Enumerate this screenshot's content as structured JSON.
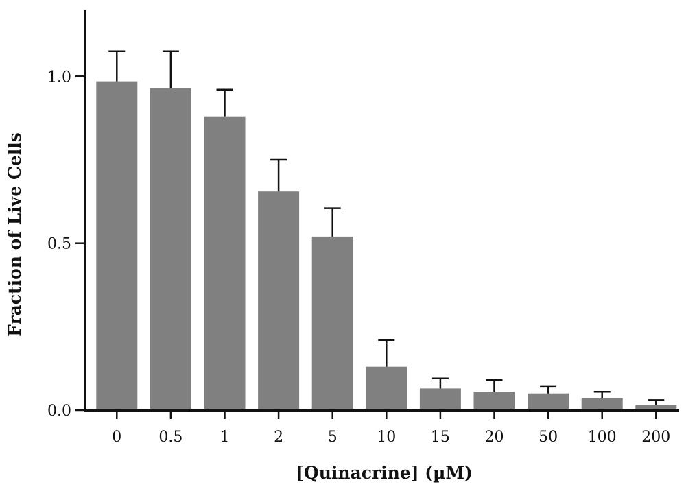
{
  "chart_data": {
    "type": "bar",
    "title": "",
    "xlabel": "[Quinacrine] (µM)",
    "ylabel": "Fraction of Live Cells",
    "categories": [
      "0",
      "0.5",
      "1",
      "2",
      "5",
      "10",
      "15",
      "20",
      "50",
      "100",
      "200"
    ],
    "values": [
      0.985,
      0.965,
      0.88,
      0.655,
      0.52,
      0.13,
      0.065,
      0.055,
      0.05,
      0.035,
      0.015
    ],
    "error_upper": [
      0.09,
      0.11,
      0.08,
      0.095,
      0.085,
      0.08,
      0.03,
      0.035,
      0.02,
      0.02,
      0.015
    ],
    "ylim": [
      0,
      1.2
    ],
    "yticks": [
      0.0,
      0.5,
      1.0
    ],
    "ytick_labels": [
      "0.0",
      "0.5",
      "1.0"
    ],
    "grid": false,
    "legend": "none",
    "bar_color": "#808080",
    "axis_color": "#111111"
  }
}
